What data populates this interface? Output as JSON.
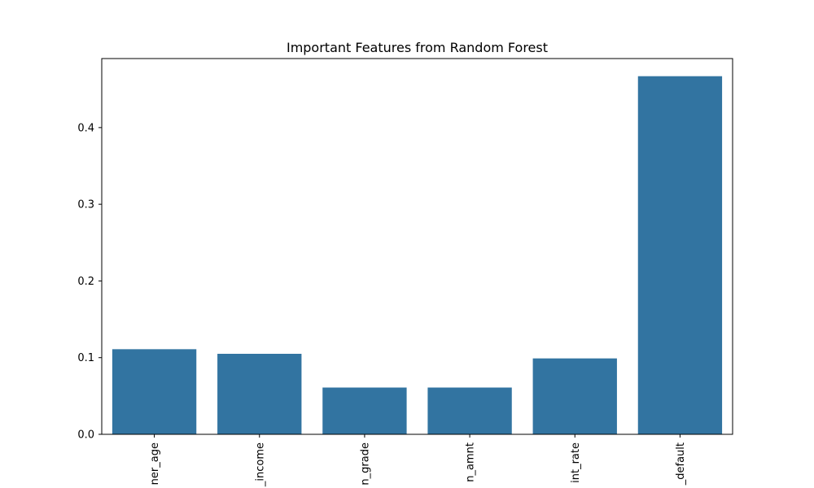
{
  "chart_data": {
    "type": "bar",
    "title": "Important Features from Random Forest",
    "xlabel": "",
    "ylabel": "",
    "categories": [
      "ner_age",
      "_income",
      "n_grade",
      "n_amnt",
      "int_rate",
      "_default"
    ],
    "values": [
      0.111,
      0.105,
      0.061,
      0.061,
      0.099,
      0.467
    ],
    "ylim": [
      0,
      0.49
    ],
    "yticks": [
      0.0,
      0.1,
      0.2,
      0.3,
      0.4
    ],
    "ytick_labels": [
      "0.0",
      "0.1",
      "0.2",
      "0.3",
      "0.4"
    ],
    "bar_color": "#3274a1",
    "grid": false,
    "legend": "none"
  }
}
